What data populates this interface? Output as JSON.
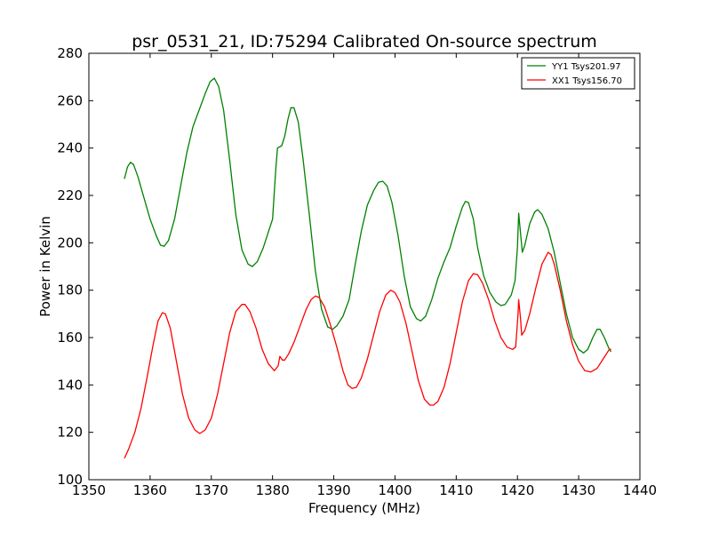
{
  "chart_data": {
    "type": "line",
    "title": "psr_0531_21, ID:75294 Calibrated On-source spectrum",
    "xlabel": "Frequency (MHz)",
    "ylabel": "Power in Kelvin",
    "xlim": [
      1350,
      1440
    ],
    "ylim": [
      100,
      280
    ],
    "xticks": [
      1350,
      1360,
      1370,
      1380,
      1390,
      1400,
      1410,
      1420,
      1430,
      1440
    ],
    "yticks": [
      100,
      120,
      140,
      160,
      180,
      200,
      220,
      240,
      260,
      280
    ],
    "grid": false,
    "legend_position": "top-right",
    "series": [
      {
        "name": "YY1 Tsys201.97",
        "color": "#008000",
        "points": [
          [
            1355.8,
            227
          ],
          [
            1356.3,
            232
          ],
          [
            1356.8,
            234
          ],
          [
            1357.3,
            233
          ],
          [
            1358.0,
            228
          ],
          [
            1359.0,
            219
          ],
          [
            1360.0,
            210
          ],
          [
            1361.0,
            203
          ],
          [
            1361.7,
            199
          ],
          [
            1362.3,
            198.5
          ],
          [
            1363.0,
            201
          ],
          [
            1364.0,
            210
          ],
          [
            1365.0,
            224
          ],
          [
            1366.0,
            238
          ],
          [
            1367.0,
            249
          ],
          [
            1368.0,
            256
          ],
          [
            1369.0,
            263
          ],
          [
            1369.8,
            268
          ],
          [
            1370.5,
            269.5
          ],
          [
            1371.2,
            266
          ],
          [
            1372.0,
            256
          ],
          [
            1373.0,
            235
          ],
          [
            1374.0,
            212
          ],
          [
            1375.0,
            197
          ],
          [
            1376.0,
            191
          ],
          [
            1376.7,
            190
          ],
          [
            1377.5,
            192
          ],
          [
            1378.5,
            198
          ],
          [
            1379.5,
            206
          ],
          [
            1380.0,
            210
          ],
          [
            1380.5,
            230
          ],
          [
            1380.8,
            240
          ],
          [
            1381.5,
            241
          ],
          [
            1382.0,
            245
          ],
          [
            1382.5,
            252
          ],
          [
            1383.0,
            257
          ],
          [
            1383.5,
            257
          ],
          [
            1384.2,
            251
          ],
          [
            1385.0,
            235
          ],
          [
            1386.0,
            212
          ],
          [
            1387.0,
            188
          ],
          [
            1388.0,
            172
          ],
          [
            1389.0,
            164.5
          ],
          [
            1389.8,
            163.5
          ],
          [
            1390.5,
            165
          ],
          [
            1391.5,
            169
          ],
          [
            1392.5,
            176
          ],
          [
            1393.5,
            191
          ],
          [
            1394.5,
            205
          ],
          [
            1395.5,
            216
          ],
          [
            1396.5,
            222
          ],
          [
            1397.3,
            225.5
          ],
          [
            1398.0,
            226
          ],
          [
            1398.7,
            224
          ],
          [
            1399.5,
            217
          ],
          [
            1400.5,
            203
          ],
          [
            1401.5,
            186
          ],
          [
            1402.5,
            173
          ],
          [
            1403.5,
            168
          ],
          [
            1404.2,
            167
          ],
          [
            1405.0,
            169
          ],
          [
            1406.0,
            176
          ],
          [
            1407.0,
            185
          ],
          [
            1408.0,
            192
          ],
          [
            1409.0,
            198
          ],
          [
            1410.0,
            207
          ],
          [
            1411.0,
            215
          ],
          [
            1411.5,
            217.5
          ],
          [
            1412.0,
            217
          ],
          [
            1412.8,
            210
          ],
          [
            1413.5,
            198
          ],
          [
            1414.5,
            186
          ],
          [
            1415.5,
            179
          ],
          [
            1416.5,
            175
          ],
          [
            1417.3,
            173.5
          ],
          [
            1418.0,
            174
          ],
          [
            1419.0,
            178
          ],
          [
            1419.6,
            184
          ],
          [
            1420.0,
            198
          ],
          [
            1420.2,
            212.5
          ],
          [
            1420.5,
            204
          ],
          [
            1420.8,
            196
          ],
          [
            1421.2,
            199
          ],
          [
            1422.0,
            208
          ],
          [
            1422.8,
            213
          ],
          [
            1423.3,
            214
          ],
          [
            1424.0,
            212
          ],
          [
            1425.0,
            206
          ],
          [
            1426.0,
            196
          ],
          [
            1427.0,
            183
          ],
          [
            1428.0,
            170
          ],
          [
            1429.0,
            160
          ],
          [
            1430.0,
            155
          ],
          [
            1430.8,
            153.5
          ],
          [
            1431.5,
            155
          ],
          [
            1432.3,
            160
          ],
          [
            1433.0,
            163.5
          ],
          [
            1433.5,
            163.5
          ],
          [
            1434.2,
            160
          ],
          [
            1435.0,
            155
          ],
          [
            1435.3,
            154
          ]
        ]
      },
      {
        "name": "XX1 Tsys156.70",
        "color": "#ff0000",
        "points": [
          [
            1355.8,
            109
          ],
          [
            1356.5,
            113
          ],
          [
            1357.5,
            120
          ],
          [
            1358.5,
            130
          ],
          [
            1359.5,
            143
          ],
          [
            1360.5,
            157
          ],
          [
            1361.3,
            167
          ],
          [
            1362.0,
            170.5
          ],
          [
            1362.5,
            170
          ],
          [
            1363.3,
            164
          ],
          [
            1364.3,
            150
          ],
          [
            1365.3,
            136
          ],
          [
            1366.3,
            126
          ],
          [
            1367.3,
            121
          ],
          [
            1368.1,
            119.5
          ],
          [
            1369.0,
            121
          ],
          [
            1370.0,
            126
          ],
          [
            1371.0,
            136
          ],
          [
            1372.0,
            149
          ],
          [
            1373.0,
            162
          ],
          [
            1374.0,
            171
          ],
          [
            1375.0,
            174
          ],
          [
            1375.5,
            174
          ],
          [
            1376.3,
            171
          ],
          [
            1377.3,
            164
          ],
          [
            1378.3,
            155
          ],
          [
            1379.3,
            149
          ],
          [
            1380.3,
            146
          ],
          [
            1380.9,
            148
          ],
          [
            1381.2,
            152
          ],
          [
            1381.6,
            150.5
          ],
          [
            1382.0,
            150.5
          ],
          [
            1382.6,
            153
          ],
          [
            1383.5,
            158
          ],
          [
            1384.5,
            165
          ],
          [
            1385.5,
            172
          ],
          [
            1386.3,
            176
          ],
          [
            1387.0,
            177.5
          ],
          [
            1387.6,
            177
          ],
          [
            1388.5,
            173
          ],
          [
            1389.5,
            165
          ],
          [
            1390.5,
            156
          ],
          [
            1391.5,
            146
          ],
          [
            1392.3,
            140
          ],
          [
            1393.0,
            138.5
          ],
          [
            1393.7,
            139
          ],
          [
            1394.5,
            143
          ],
          [
            1395.5,
            151
          ],
          [
            1396.5,
            161
          ],
          [
            1397.5,
            171
          ],
          [
            1398.5,
            178
          ],
          [
            1399.3,
            180
          ],
          [
            1400.0,
            179
          ],
          [
            1400.8,
            175
          ],
          [
            1401.8,
            166
          ],
          [
            1402.8,
            154
          ],
          [
            1403.8,
            142
          ],
          [
            1404.8,
            134
          ],
          [
            1405.7,
            131.5
          ],
          [
            1406.3,
            131.5
          ],
          [
            1407.0,
            133
          ],
          [
            1408.0,
            139
          ],
          [
            1409.0,
            149
          ],
          [
            1410.0,
            162
          ],
          [
            1411.0,
            175
          ],
          [
            1412.0,
            184
          ],
          [
            1412.8,
            187
          ],
          [
            1413.5,
            186.5
          ],
          [
            1414.3,
            183
          ],
          [
            1415.3,
            176
          ],
          [
            1416.3,
            167
          ],
          [
            1417.3,
            160
          ],
          [
            1418.3,
            156
          ],
          [
            1419.2,
            155
          ],
          [
            1419.7,
            156
          ],
          [
            1420.1,
            170
          ],
          [
            1420.2,
            176
          ],
          [
            1420.5,
            168
          ],
          [
            1420.7,
            161
          ],
          [
            1421.2,
            163
          ],
          [
            1422.0,
            170
          ],
          [
            1423.0,
            181
          ],
          [
            1424.0,
            191
          ],
          [
            1425.0,
            196
          ],
          [
            1425.5,
            195
          ],
          [
            1426.0,
            191
          ],
          [
            1427.0,
            180
          ],
          [
            1428.0,
            167
          ],
          [
            1429.0,
            157
          ],
          [
            1430.0,
            150
          ],
          [
            1431.0,
            146
          ],
          [
            1432.0,
            145.5
          ],
          [
            1433.0,
            147
          ],
          [
            1434.0,
            151
          ],
          [
            1435.0,
            155
          ],
          [
            1435.3,
            155
          ]
        ]
      }
    ]
  }
}
